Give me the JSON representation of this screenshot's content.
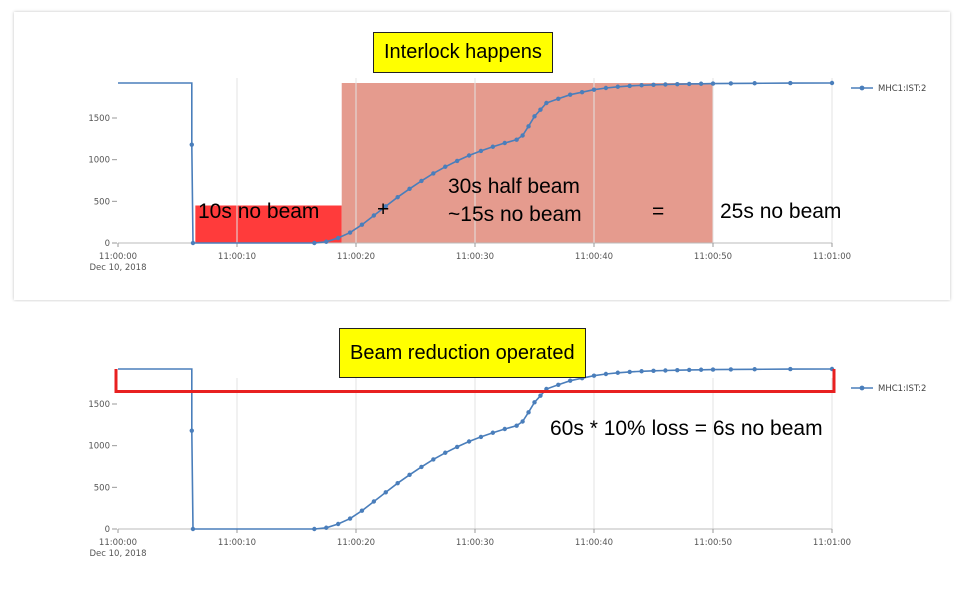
{
  "annotations": {
    "interlock_callout": "Interlock happens",
    "no_beam_10s": "10s no beam",
    "plus": "+",
    "half_beam_30s": "30s half beam",
    "no_beam_15s": "~15s no beam",
    "equals": "=",
    "no_beam_25s": "25s no beam",
    "reduction_callout": "Beam reduction operated",
    "loss_note": "60s * 10% loss = 6s no beam"
  },
  "colors": {
    "series": "#4a7ebb",
    "red_bar": "#ff3b3b",
    "shade": "#e0897a",
    "outline": "#e82020",
    "callout_bg": "#ffff00"
  },
  "chart_data": [
    {
      "type": "line",
      "title": "",
      "xlabel": "",
      "ylabel": "",
      "x_start_label": "11:00:00",
      "x_date_label": "Dec 10, 2018",
      "x_tick_labels": [
        "11:00:00",
        "11:00:10",
        "11:00:20",
        "11:00:30",
        "11:00:40",
        "11:00:50",
        "11:01:00"
      ],
      "x_ticks": [
        0,
        10,
        20,
        30,
        40,
        50,
        60
      ],
      "xlim": [
        0,
        60
      ],
      "y_ticks": [
        0,
        500,
        1000,
        1500
      ],
      "ylim": [
        0,
        1900
      ],
      "grid": true,
      "legend_position": "top-right",
      "series": [
        {
          "name": "MHC1:IST:2",
          "x": [
            0,
            6.2,
            6.2,
            6.3,
            16.5,
            17.5,
            18.5,
            19.5,
            20.5,
            21.5,
            22.5,
            23.5,
            24.5,
            25.5,
            26.5,
            27.5,
            28.5,
            29.5,
            30.5,
            31.5,
            32.5,
            33.5,
            34,
            34.5,
            35,
            35.5,
            36,
            37,
            38,
            39,
            40,
            41,
            42,
            43,
            44,
            45,
            46,
            47,
            48,
            49,
            50,
            51.5,
            53.5,
            56.5,
            60
          ],
          "y": [
            1920,
            1920,
            1180,
            0,
            0,
            15,
            60,
            125,
            220,
            330,
            440,
            550,
            650,
            745,
            835,
            915,
            985,
            1050,
            1105,
            1155,
            1200,
            1240,
            1290,
            1400,
            1520,
            1600,
            1680,
            1730,
            1780,
            1810,
            1840,
            1860,
            1875,
            1885,
            1893,
            1898,
            1902,
            1906,
            1909,
            1911,
            1913,
            1915,
            1917,
            1919,
            1920
          ]
        }
      ],
      "highlights": [
        {
          "kind": "red-bar",
          "x": [
            6.5,
            18.8
          ],
          "y": [
            0,
            450
          ]
        },
        {
          "kind": "shaded-region",
          "x": [
            18.8,
            50
          ]
        }
      ]
    },
    {
      "type": "line",
      "title": "",
      "xlabel": "",
      "ylabel": "",
      "x_start_label": "11:00:00",
      "x_date_label": "Dec 10, 2018",
      "x_tick_labels": [
        "11:00:00",
        "11:00:10",
        "11:00:20",
        "11:00:30",
        "11:00:40",
        "11:00:50",
        "11:01:00"
      ],
      "x_ticks": [
        0,
        10,
        20,
        30,
        40,
        50,
        60
      ],
      "xlim": [
        0,
        60
      ],
      "y_ticks": [
        0,
        500,
        1000,
        1500
      ],
      "ylim": [
        0,
        1900
      ],
      "grid": true,
      "legend_position": "top-right",
      "series": [
        {
          "name": "MHC1:IST:2",
          "x": [
            0,
            6.2,
            6.2,
            6.3,
            16.5,
            17.5,
            18.5,
            19.5,
            20.5,
            21.5,
            22.5,
            23.5,
            24.5,
            25.5,
            26.5,
            27.5,
            28.5,
            29.5,
            30.5,
            31.5,
            32.5,
            33.5,
            34,
            34.5,
            35,
            35.5,
            36,
            37,
            38,
            39,
            40,
            41,
            42,
            43,
            44,
            45,
            46,
            47,
            48,
            49,
            50,
            51.5,
            53.5,
            56.5,
            60
          ],
          "y": [
            1920,
            1920,
            1180,
            0,
            0,
            15,
            60,
            125,
            220,
            330,
            440,
            550,
            650,
            745,
            835,
            915,
            985,
            1050,
            1105,
            1155,
            1200,
            1240,
            1290,
            1400,
            1520,
            1600,
            1680,
            1730,
            1780,
            1810,
            1840,
            1860,
            1875,
            1885,
            1893,
            1898,
            1902,
            1906,
            1909,
            1911,
            1913,
            1915,
            1917,
            1919,
            1920
          ]
        }
      ],
      "highlights": [
        {
          "kind": "outline-bracket",
          "x": [
            0,
            60
          ],
          "y": [
            1650,
            1920
          ]
        }
      ]
    }
  ]
}
